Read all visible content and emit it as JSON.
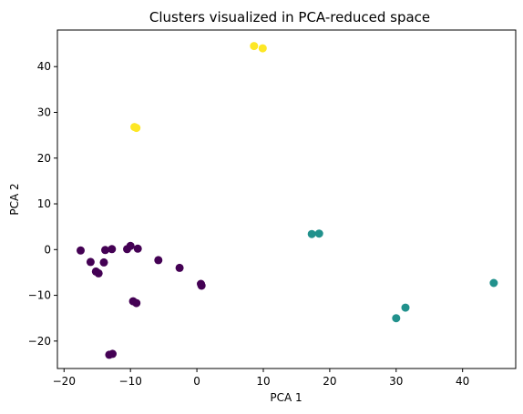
{
  "chart_data": {
    "type": "scatter",
    "title": "Clusters visualized in PCA-reduced space",
    "xlabel": "PCA 1",
    "ylabel": "PCA 2",
    "xlim": [
      -21,
      48
    ],
    "ylim": [
      -26,
      48
    ],
    "xticks": [
      -20,
      -10,
      0,
      10,
      20,
      30,
      40
    ],
    "yticks": [
      -20,
      -10,
      0,
      10,
      20,
      30,
      40
    ],
    "grid": false,
    "legend": "none",
    "colors": [
      "#440154",
      "#21918c",
      "#fde725"
    ],
    "points": [
      {
        "x": -17.5,
        "y": -0.2,
        "cluster": 0
      },
      {
        "x": -16.0,
        "y": -2.7,
        "cluster": 0
      },
      {
        "x": -15.2,
        "y": -4.8,
        "cluster": 0
      },
      {
        "x": -14.8,
        "y": -5.2,
        "cluster": 0
      },
      {
        "x": -14.0,
        "y": -2.8,
        "cluster": 0
      },
      {
        "x": -13.8,
        "y": -0.1,
        "cluster": 0
      },
      {
        "x": -12.8,
        "y": 0.1,
        "cluster": 0
      },
      {
        "x": -13.2,
        "y": -23.0,
        "cluster": 0
      },
      {
        "x": -12.7,
        "y": -22.8,
        "cluster": 0
      },
      {
        "x": -10.5,
        "y": 0.1,
        "cluster": 0
      },
      {
        "x": -10.0,
        "y": 0.8,
        "cluster": 0
      },
      {
        "x": -9.6,
        "y": -11.3,
        "cluster": 0
      },
      {
        "x": -9.1,
        "y": -11.7,
        "cluster": 0
      },
      {
        "x": -8.9,
        "y": 0.2,
        "cluster": 0
      },
      {
        "x": -5.8,
        "y": -2.3,
        "cluster": 0
      },
      {
        "x": -2.6,
        "y": -4.0,
        "cluster": 0
      },
      {
        "x": 0.6,
        "y": -7.5,
        "cluster": 0
      },
      {
        "x": 0.7,
        "y": -7.9,
        "cluster": 0
      },
      {
        "x": 17.3,
        "y": 3.4,
        "cluster": 1
      },
      {
        "x": 18.4,
        "y": 3.5,
        "cluster": 1
      },
      {
        "x": 30.0,
        "y": -15.0,
        "cluster": 1
      },
      {
        "x": 31.4,
        "y": -12.7,
        "cluster": 1
      },
      {
        "x": 44.7,
        "y": -7.3,
        "cluster": 1
      },
      {
        "x": -9.4,
        "y": 26.8,
        "cluster": 2
      },
      {
        "x": -9.1,
        "y": 26.6,
        "cluster": 2
      },
      {
        "x": 8.6,
        "y": 44.5,
        "cluster": 2
      },
      {
        "x": 9.9,
        "y": 44.0,
        "cluster": 2
      }
    ]
  }
}
